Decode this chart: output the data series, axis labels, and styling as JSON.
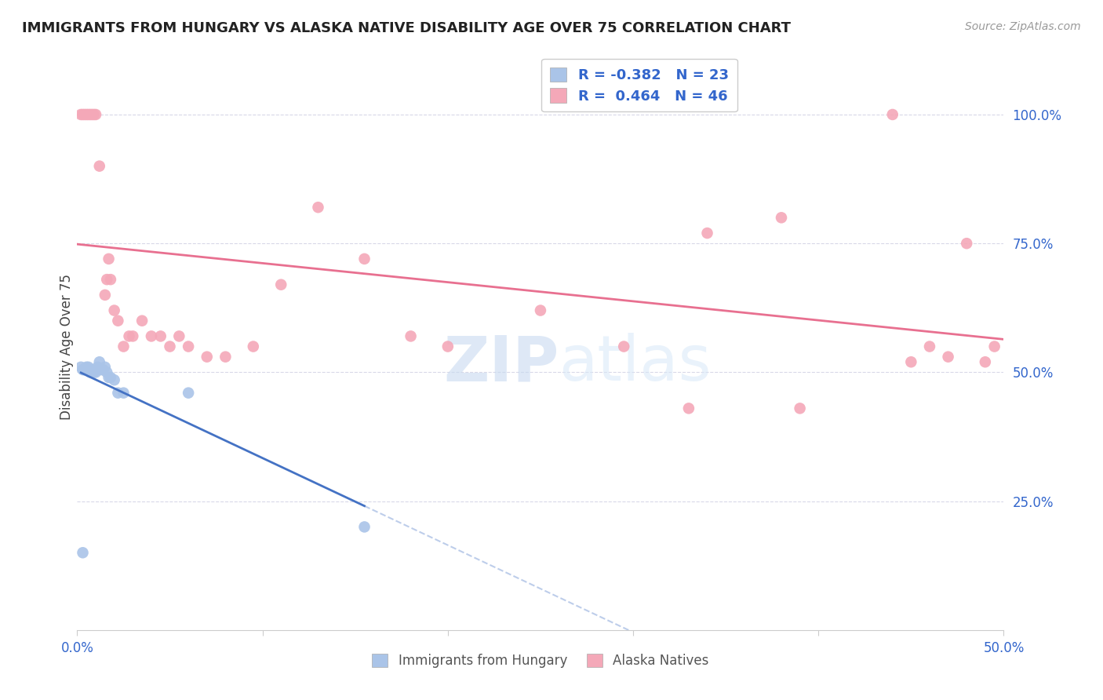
{
  "title": "IMMIGRANTS FROM HUNGARY VS ALASKA NATIVE DISABILITY AGE OVER 75 CORRELATION CHART",
  "source": "Source: ZipAtlas.com",
  "ylabel": "Disability Age Over 75",
  "ytick_labels": [
    "100.0%",
    "75.0%",
    "50.0%",
    "25.0%"
  ],
  "ytick_values": [
    1.0,
    0.75,
    0.5,
    0.25
  ],
  "xlim": [
    0.0,
    0.5
  ],
  "ylim": [
    0.0,
    1.1
  ],
  "legend_bottom": [
    "Immigrants from Hungary",
    "Alaska Natives"
  ],
  "hungary_x": [
    0.002,
    0.003,
    0.004,
    0.005,
    0.006,
    0.007,
    0.008,
    0.009,
    0.01,
    0.011,
    0.012,
    0.013,
    0.014,
    0.015,
    0.016,
    0.017,
    0.018,
    0.02,
    0.022,
    0.025,
    0.06,
    0.155,
    0.003
  ],
  "hungary_y": [
    0.51,
    0.505,
    0.505,
    0.51,
    0.51,
    0.5,
    0.505,
    0.5,
    0.5,
    0.51,
    0.52,
    0.505,
    0.505,
    0.51,
    0.5,
    0.49,
    0.49,
    0.485,
    0.46,
    0.46,
    0.46,
    0.2,
    0.15
  ],
  "alaska_x": [
    0.002,
    0.003,
    0.004,
    0.005,
    0.006,
    0.007,
    0.008,
    0.009,
    0.01,
    0.012,
    0.015,
    0.016,
    0.017,
    0.018,
    0.02,
    0.022,
    0.025,
    0.028,
    0.03,
    0.035,
    0.04,
    0.045,
    0.05,
    0.055,
    0.06,
    0.07,
    0.08,
    0.095,
    0.11,
    0.13,
    0.155,
    0.18,
    0.2,
    0.25,
    0.295,
    0.33,
    0.34,
    0.38,
    0.39,
    0.44,
    0.45,
    0.46,
    0.47,
    0.48,
    0.49,
    0.495
  ],
  "alaska_y": [
    1.0,
    1.0,
    1.0,
    1.0,
    1.0,
    1.0,
    1.0,
    1.0,
    1.0,
    0.9,
    0.65,
    0.68,
    0.72,
    0.68,
    0.62,
    0.6,
    0.55,
    0.57,
    0.57,
    0.6,
    0.57,
    0.57,
    0.55,
    0.57,
    0.55,
    0.53,
    0.53,
    0.55,
    0.67,
    0.82,
    0.72,
    0.57,
    0.55,
    0.62,
    0.55,
    0.43,
    0.77,
    0.8,
    0.43,
    1.0,
    0.52,
    0.55,
    0.53,
    0.75,
    0.52,
    0.55
  ],
  "hungary_line_color": "#4472c4",
  "alaska_line_color": "#e87090",
  "hungary_dot_color": "#aac4e8",
  "alaska_dot_color": "#f4a8b8",
  "watermark_zip": "ZIP",
  "watermark_atlas": "atlas",
  "background_color": "#ffffff",
  "grid_color": "#d8d8e8",
  "hungary_R": "-0.382",
  "hungary_N": "23",
  "alaska_R": "0.464",
  "alaska_N": "46"
}
